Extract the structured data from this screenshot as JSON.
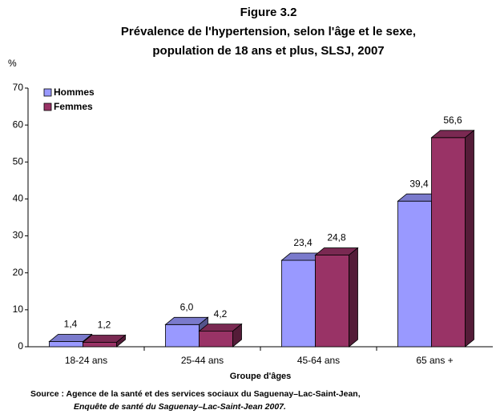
{
  "chart_data": {
    "type": "bar3d",
    "title": [
      "Figure 3.2",
      "Prévalence de l'hypertension, selon l'âge et le sexe,",
      "population de 18 ans et plus, SLSJ, 2007"
    ],
    "y_label": "%",
    "x_label": "Groupe d'âges",
    "source": [
      "Source : Agence de la santé et des services sociaux du Saguenay–Lac-Saint-Jean,",
      "Enquête de santé du  Saguenay–Lac-Saint-Jean 2007."
    ],
    "categories": [
      "18-24 ans",
      "25-44 ans",
      "45-64 ans",
      "65 ans +"
    ],
    "series": [
      {
        "name": "Hommes",
        "color": "#9999ff",
        "values": [
          1.4,
          6.0,
          23.4,
          39.4
        ],
        "value_labels": [
          "1,4",
          "6,0",
          "23,4",
          "39,4"
        ]
      },
      {
        "name": "Femmes",
        "color": "#993366",
        "values": [
          1.2,
          4.2,
          24.8,
          56.6
        ],
        "value_labels": [
          "1,2",
          "4,2",
          "24,8",
          "56,6"
        ]
      }
    ],
    "ylim": [
      0,
      70
    ],
    "yticks": [
      0,
      10,
      20,
      30,
      40,
      50,
      60,
      70
    ],
    "legend": "top-left",
    "grid": false
  }
}
